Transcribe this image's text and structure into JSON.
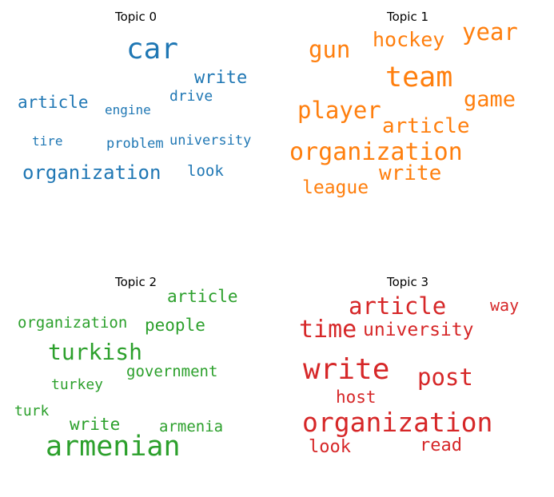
{
  "chart_data": {
    "type": "wordcloud",
    "panels": [
      {
        "title": "Topic 0",
        "color": "#1f77b4",
        "words": [
          {
            "text": "car",
            "weight": 1.0
          },
          {
            "text": "write",
            "weight": 0.55
          },
          {
            "text": "article",
            "weight": 0.55
          },
          {
            "text": "organization",
            "weight": 0.62
          },
          {
            "text": "drive",
            "weight": 0.47
          },
          {
            "text": "engine",
            "weight": 0.42
          },
          {
            "text": "problem",
            "weight": 0.45
          },
          {
            "text": "university",
            "weight": 0.45
          },
          {
            "text": "tire",
            "weight": 0.4
          },
          {
            "text": "look",
            "weight": 0.5
          }
        ]
      },
      {
        "title": "Topic 1",
        "color": "#ff7f0e",
        "words": [
          {
            "text": "team",
            "weight": 1.0
          },
          {
            "text": "organization",
            "weight": 0.88
          },
          {
            "text": "year",
            "weight": 0.8
          },
          {
            "text": "gun",
            "weight": 0.8
          },
          {
            "text": "game",
            "weight": 0.74
          },
          {
            "text": "player",
            "weight": 0.8
          },
          {
            "text": "hockey",
            "weight": 0.7
          },
          {
            "text": "article",
            "weight": 0.72
          },
          {
            "text": "write",
            "weight": 0.72
          },
          {
            "text": "league",
            "weight": 0.64
          }
        ]
      },
      {
        "title": "Topic 2",
        "color": "#2ca02c",
        "words": [
          {
            "text": "armenian",
            "weight": 1.0
          },
          {
            "text": "turkish",
            "weight": 0.8
          },
          {
            "text": "article",
            "weight": 0.66
          },
          {
            "text": "people",
            "weight": 0.66
          },
          {
            "text": "organization",
            "weight": 0.62
          },
          {
            "text": "government",
            "weight": 0.62
          },
          {
            "text": "write",
            "weight": 0.66
          },
          {
            "text": "turkey",
            "weight": 0.55
          },
          {
            "text": "turk",
            "weight": 0.55
          },
          {
            "text": "armenia",
            "weight": 0.58
          }
        ]
      },
      {
        "title": "Topic 3",
        "color": "#d62728",
        "words": [
          {
            "text": "write",
            "weight": 1.0
          },
          {
            "text": "organization",
            "weight": 0.95
          },
          {
            "text": "article",
            "weight": 0.8
          },
          {
            "text": "time",
            "weight": 0.85
          },
          {
            "text": "post",
            "weight": 0.8
          },
          {
            "text": "university",
            "weight": 0.66
          },
          {
            "text": "way",
            "weight": 0.55
          },
          {
            "text": "host",
            "weight": 0.6
          },
          {
            "text": "look",
            "weight": 0.6
          },
          {
            "text": "read",
            "weight": 0.6
          }
        ]
      }
    ]
  }
}
